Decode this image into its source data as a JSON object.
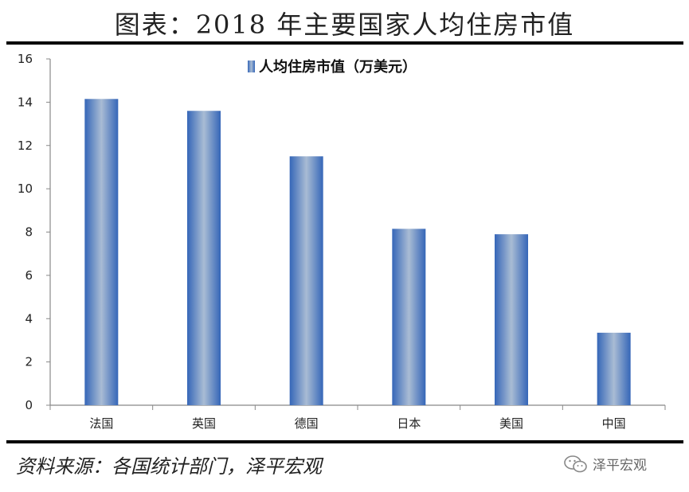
{
  "header": {
    "title": "图表：2018 年主要国家人均住房市值"
  },
  "footer": {
    "source": "资料来源：各国统计部门，泽平宏观",
    "brand": "泽平宏观",
    "brand_icon": "wechat-icon"
  },
  "colors": {
    "bar_edge": "#3566b8",
    "bar_center": "#a9bcd4",
    "axis": "#888888"
  },
  "chart_data": {
    "type": "bar",
    "categories": [
      "法国",
      "英国",
      "德国",
      "日本",
      "美国",
      "中国"
    ],
    "series": [
      {
        "name": "人均住房市值（万美元）",
        "values": [
          14.15,
          13.6,
          11.5,
          8.15,
          7.9,
          3.35
        ]
      }
    ],
    "ylim": [
      0,
      16
    ],
    "yticks": [
      0,
      2,
      4,
      6,
      8,
      10,
      12,
      14,
      16
    ],
    "legend": "top-center",
    "grid": false
  }
}
